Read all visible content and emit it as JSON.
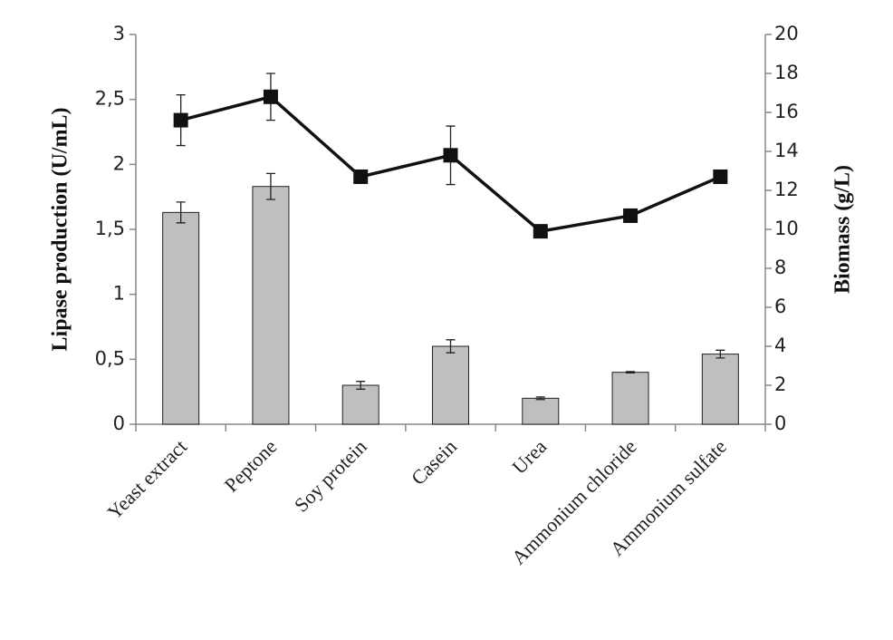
{
  "chart_data": {
    "type": "bar_line",
    "categories": [
      "Yeast extract",
      "Peptone",
      "Soy protein",
      "Casein",
      "Urea",
      "Ammonium chloride",
      "Ammonium sulfate"
    ],
    "y_label": "Lipase production (U/mL)",
    "y2_label": "Biomass (g/L)",
    "ylim": [
      0,
      3
    ],
    "yticks": [
      0,
      {
        "value": 0.5,
        "label": "0,5"
      },
      1,
      {
        "value": 1.5,
        "label": "1,5"
      },
      2,
      {
        "value": 2.5,
        "label": "2,5"
      },
      3
    ],
    "y2lim": [
      0,
      20
    ],
    "y2ticks": [
      0,
      2,
      4,
      6,
      8,
      10,
      12,
      14,
      16,
      18,
      20
    ],
    "series": [
      {
        "type": "bar",
        "color": "#bfbfbf",
        "values": [
          1.63,
          1.83,
          0.3,
          0.6,
          0.2,
          0.4,
          0.54
        ],
        "errors": [
          0.08,
          0.1,
          0.03,
          0.05,
          0.01,
          0.005,
          0.03
        ]
      },
      {
        "type": "line",
        "axis": "y2",
        "color": "#111111",
        "values": [
          15.6,
          16.8,
          12.7,
          13.8,
          9.9,
          10.7,
          12.7
        ],
        "errors": [
          1.3,
          1.2,
          0.1,
          1.5,
          0.2,
          0.1,
          0.1
        ]
      }
    ]
  }
}
